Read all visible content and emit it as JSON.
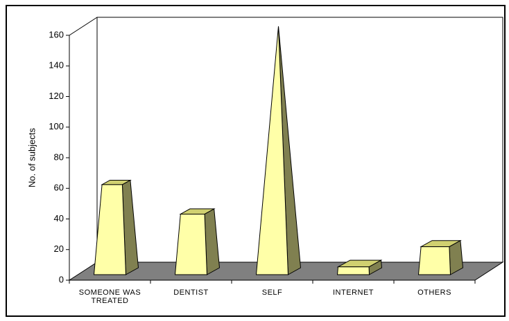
{
  "chart_data": {
    "type": "pyramid",
    "y_axis_label": "No. of subjects",
    "categories": [
      "SOMEONE WAS TREATED",
      "DENTIST",
      "SELF",
      "INTERNET",
      "OTHERS"
    ],
    "values": [
      58,
      39,
      160,
      5,
      18
    ],
    "color": "#ffffa8",
    "ylim": [
      0,
      160
    ],
    "yticks": [
      0,
      20,
      40,
      60,
      80,
      100,
      120,
      140,
      160
    ]
  }
}
